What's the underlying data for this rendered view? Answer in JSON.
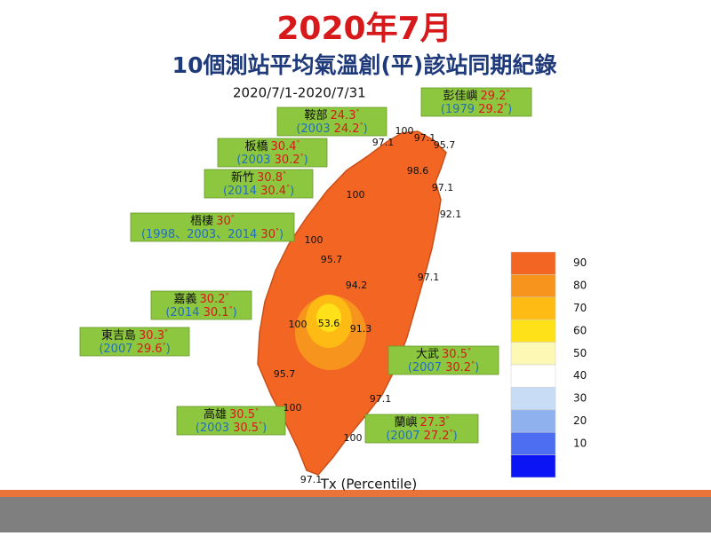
{
  "title": "2020年7月",
  "subtitle": "10個測站平均氣溫創(平)該站同期紀錄",
  "period": "2020/7/1-2020/7/31",
  "legend": {
    "label": "Tx (Percentile)",
    "lim": [
      0,
      100
    ],
    "ticks": [
      90,
      80,
      70,
      60,
      50,
      40,
      30,
      20,
      10
    ],
    "colors": [
      "#f26522",
      "#f7941d",
      "#fdbb13",
      "#ffe11a",
      "#fdf8b3",
      "#ffffff",
      "#c9dcf5",
      "#8fb2ee",
      "#4d6ef0",
      "#0a14f5"
    ]
  },
  "stations": [
    {
      "name": "鞍部",
      "temp": "24.3",
      "unit": "°",
      "record_open": "(2003 ",
      "record_temp": "24.2",
      "record_close": ")"
    },
    {
      "name": "彭佳嶼",
      "temp": "29.2",
      "unit": "°",
      "record_open": "(1979 ",
      "record_temp": "29.2",
      "record_close": ")"
    },
    {
      "name": "板橋",
      "temp": "30.4",
      "unit": "°",
      "record_open": "(2003 ",
      "record_temp": "30.2",
      "record_close": ")"
    },
    {
      "name": "新竹",
      "temp": "30.8",
      "unit": "°",
      "record_open": "(2014 ",
      "record_temp": "30.4",
      "record_close": ")"
    },
    {
      "name": "梧棲",
      "temp": "30",
      "unit": "°",
      "record_open": "(1998、2003、2014 ",
      "record_temp": "30",
      "record_close": ")"
    },
    {
      "name": "嘉義",
      "temp": "30.2",
      "unit": "°",
      "record_open": "(2014 ",
      "record_temp": "30.1",
      "record_close": ")"
    },
    {
      "name": "東吉島",
      "temp": "30.3",
      "unit": "°",
      "record_open": "(2007 ",
      "record_temp": "29.6",
      "record_close": ")"
    },
    {
      "name": "大武",
      "temp": "30.5",
      "unit": "°",
      "record_open": "(2007 ",
      "record_temp": "30.2",
      "record_close": ")"
    },
    {
      "name": "高雄",
      "temp": "30.5",
      "unit": "°",
      "record_open": "(2003 ",
      "record_temp": "30.5",
      "record_close": ")"
    },
    {
      "name": "蘭嶼",
      "temp": "27.3",
      "unit": "°",
      "record_open": "(2007 ",
      "record_temp": "27.2",
      "record_close": ")"
    }
  ],
  "percentiles": [
    100,
    97.1,
    97.1,
    95.7,
    98.6,
    97.1,
    100,
    92.1,
    100,
    95.7,
    94.2,
    97.1,
    53.6,
    91.3,
    100,
    95.7,
    97.1,
    100,
    100,
    97.1
  ]
}
